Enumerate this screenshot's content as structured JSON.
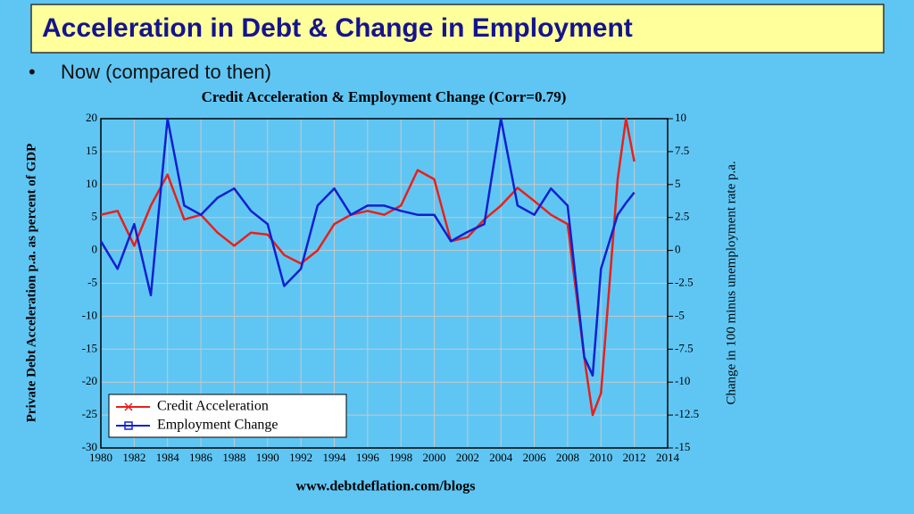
{
  "slide": {
    "title": "Acceleration in Debt & Change in Employment",
    "bullet": "Now (compared to then)"
  },
  "chart_data": {
    "type": "line",
    "title": "Credit Acceleration & Employment Change (Corr=0.79)",
    "y_label": "Private Debt Acceleration p.a. as percent of GDP",
    "y2_label": "Change in 100 minus unemployment rate p.a.",
    "x": [
      1980,
      1981,
      1982,
      1983,
      1984,
      1985,
      1986,
      1987,
      1988,
      1989,
      1990,
      1991,
      1992,
      1993,
      1994,
      1995,
      1996,
      1997,
      1998,
      1999,
      2000,
      2001,
      2002,
      2003,
      2004,
      2005,
      2006,
      2007,
      2008,
      2009,
      2009.5,
      2010,
      2011,
      2011.5,
      2012
    ],
    "series": [
      {
        "name": "Credit Acceleration",
        "color": "#e8201a",
        "values": [
          5.4,
          6,
          0.7,
          6.8,
          11.5,
          4.7,
          5.4,
          2.7,
          0.7,
          2.7,
          2.4,
          -0.7,
          -2,
          0,
          4,
          5.4,
          6,
          5.4,
          6.8,
          12.2,
          10.8,
          1.4,
          2,
          4.7,
          6.8,
          9.5,
          7.5,
          5.4,
          4,
          -16.3,
          -25,
          -21.7,
          10.8,
          20,
          13.5
        ]
      },
      {
        "name": "Employment Change",
        "color": "#1020d0",
        "axis": "y2",
        "values": [
          0.7,
          -1.4,
          2,
          -3.4,
          10,
          3.4,
          2.7,
          4,
          4.7,
          3,
          2,
          -2.7,
          -1.4,
          3.4,
          4.7,
          2.7,
          3.4,
          3.4,
          3,
          2.7,
          2.7,
          0.7,
          1.4,
          2,
          10,
          3.4,
          2.7,
          4.7,
          3.4,
          -8.1,
          -9.5,
          -1.4,
          2.7,
          3.6,
          4.4
        ]
      }
    ],
    "xlim": [
      1980,
      2014
    ],
    "xticks": [
      1980,
      1982,
      1984,
      1986,
      1988,
      1990,
      1992,
      1994,
      1996,
      1998,
      2000,
      2002,
      2004,
      2006,
      2008,
      2010,
      2012,
      2014
    ],
    "ylim": [
      -30,
      20
    ],
    "yticks": [
      -30,
      -25,
      -20,
      -15,
      -10,
      -5,
      0,
      5,
      10,
      15,
      20
    ],
    "y2lim": [
      -15,
      10
    ],
    "y2ticks": [
      -15,
      -12.5,
      -10,
      -7.5,
      -5,
      -2.5,
      0,
      2.5,
      5,
      7.5,
      10
    ],
    "grid": true
  },
  "source": "www.debtdeflation.com/blogs"
}
